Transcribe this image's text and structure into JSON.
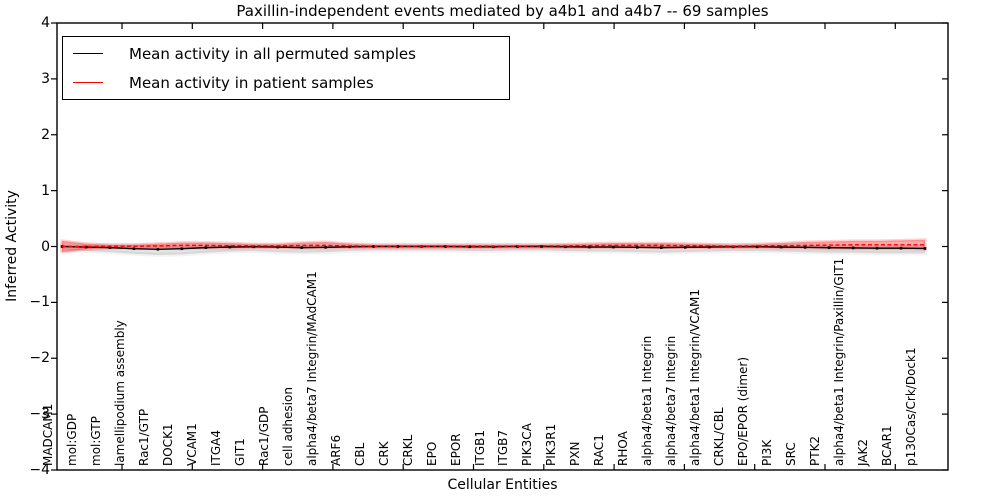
{
  "figure": {
    "title": "Paxillin-independent events mediated by a4b1 and a4b7 -- 69 samples",
    "xlabel": "Cellular Entities",
    "ylabel": "Inferred Activity"
  },
  "chart_data": {
    "type": "line",
    "title": "Paxillin-independent events mediated by a4b1 and a4b7 -- 69 samples",
    "xlabel": "Cellular Entities",
    "ylabel": "Inferred Activity",
    "ylim": [
      -4,
      4
    ],
    "yticks": [
      4,
      3,
      2,
      1,
      0,
      -1,
      -2,
      -3,
      -4
    ],
    "grid": false,
    "legend_position": "upper left",
    "categories": [
      "MADCAM1",
      "mol:GDP",
      "mol:GTP",
      "lamellipodium assembly",
      "Rac1/GTP",
      "DOCK1",
      "VCAM1",
      "ITGA4",
      "GIT1",
      "Rac1/GDP",
      "cell adhesion",
      "alpha4/beta7 Integrin/MAdCAM1",
      "ARF6",
      "CBL",
      "CRK",
      "CRKL",
      "EPO",
      "EPOR",
      "ITGB1",
      "ITGB7",
      "PIK3CA",
      "PIK3R1",
      "PXN",
      "RAC1",
      "RHOA",
      "alpha4/beta1 Integrin",
      "alpha4/beta7 Integrin",
      "alpha4/beta1 Integrin/VCAM1",
      "CRKL/CBL",
      "EPO/EPOR (dimer)",
      "PI3K",
      "SRC",
      "PTK2",
      "alpha4/beta1 Integrin/Paxillin/GIT1",
      "JAK2",
      "BCAR1",
      "p130Cas/Crk/Dock1"
    ],
    "series": [
      {
        "name": "Mean activity in all permuted samples",
        "color": "#000000",
        "style": "solid",
        "band_color": "rgba(0,0,0,0.11)",
        "band_edge_color": "rgba(0,0,0,0.05)",
        "values": [
          0.0,
          -0.01,
          -0.02,
          -0.04,
          -0.05,
          -0.04,
          -0.02,
          -0.01,
          -0.005,
          -0.01,
          -0.02,
          -0.015,
          -0.005,
          0.0,
          0.0,
          0.0,
          0.0,
          -0.005,
          -0.005,
          0.0,
          0.0,
          -0.005,
          -0.01,
          -0.01,
          -0.015,
          -0.02,
          -0.015,
          -0.01,
          -0.005,
          -0.005,
          -0.01,
          -0.015,
          -0.02,
          -0.025,
          -0.03,
          -0.03,
          -0.035
        ],
        "band_low": [
          -0.06,
          -0.08,
          -0.1,
          -0.13,
          -0.15,
          -0.14,
          -0.11,
          -0.09,
          -0.08,
          -0.1,
          -0.11,
          -0.1,
          -0.08,
          -0.07,
          -0.07,
          -0.07,
          -0.07,
          -0.08,
          -0.08,
          -0.07,
          -0.07,
          -0.08,
          -0.09,
          -0.09,
          -0.1,
          -0.11,
          -0.1,
          -0.09,
          -0.08,
          -0.08,
          -0.09,
          -0.1,
          -0.11,
          -0.11,
          -0.12,
          -0.12,
          -0.12
        ],
        "band_high": [
          0.04,
          0.03,
          0.03,
          0.03,
          0.03,
          0.03,
          0.03,
          0.03,
          0.03,
          0.03,
          0.03,
          0.03,
          0.03,
          0.03,
          0.03,
          0.03,
          0.03,
          0.03,
          0.03,
          0.03,
          0.03,
          0.03,
          0.03,
          0.03,
          0.03,
          0.03,
          0.03,
          0.03,
          0.03,
          0.03,
          0.03,
          0.03,
          0.02,
          0.02,
          0.02,
          0.02,
          0.02
        ]
      },
      {
        "name": "Mean activity in patient samples",
        "color": "#ff0000",
        "style": "dashed",
        "band_color": "rgba(255,0,0,0.32)",
        "band_edge_color": "rgba(255,0,0,0.18)",
        "values": [
          0.0,
          0.0,
          0.005,
          0.005,
          0.01,
          0.02,
          0.02,
          0.015,
          0.01,
          0.01,
          0.02,
          0.02,
          0.01,
          0.005,
          0.005,
          0.005,
          0.005,
          0.005,
          0.005,
          0.005,
          0.01,
          0.01,
          0.015,
          0.02,
          0.02,
          0.02,
          0.015,
          0.01,
          0.005,
          0.01,
          0.015,
          0.02,
          0.025,
          0.03,
          0.03,
          0.03,
          0.03
        ],
        "band_low": [
          -0.1,
          -0.05,
          -0.03,
          -0.03,
          -0.03,
          -0.03,
          -0.03,
          -0.03,
          -0.02,
          -0.02,
          -0.03,
          -0.03,
          -0.02,
          -0.02,
          -0.02,
          -0.02,
          -0.02,
          -0.02,
          -0.02,
          -0.02,
          -0.02,
          -0.02,
          -0.02,
          -0.02,
          -0.02,
          -0.02,
          -0.02,
          -0.02,
          -0.02,
          -0.02,
          -0.03,
          -0.03,
          -0.04,
          -0.04,
          -0.04,
          -0.04,
          -0.05
        ],
        "band_high": [
          0.1,
          0.05,
          0.03,
          0.03,
          0.05,
          0.07,
          0.07,
          0.06,
          0.04,
          0.04,
          0.07,
          0.08,
          0.05,
          0.03,
          0.03,
          0.03,
          0.03,
          0.03,
          0.03,
          0.03,
          0.03,
          0.04,
          0.05,
          0.06,
          0.06,
          0.06,
          0.05,
          0.04,
          0.03,
          0.04,
          0.06,
          0.08,
          0.09,
          0.1,
          0.1,
          0.11,
          0.12
        ]
      }
    ]
  }
}
